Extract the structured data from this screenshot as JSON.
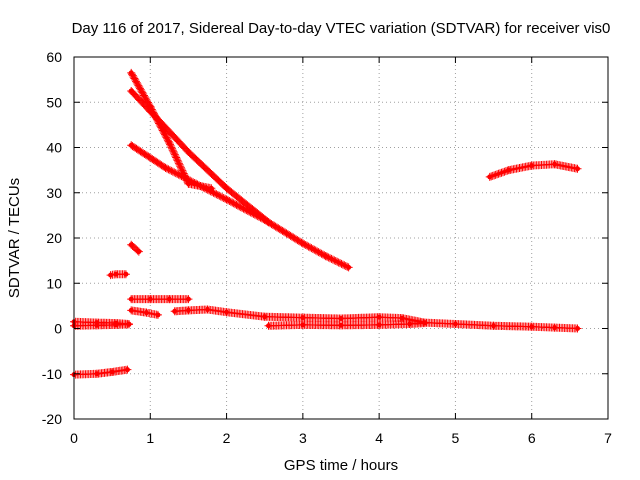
{
  "chart_data": {
    "type": "scatter",
    "title": "Day 116 of 2017, Sidereal Day-to-day VTEC variation (SDTVAR) for receiver vis0",
    "xlabel": "GPS time / hours",
    "ylabel": "SDTVAR / TECUs",
    "xlim": [
      0,
      7
    ],
    "ylim": [
      -20,
      60
    ],
    "xticks": [
      "0",
      "1",
      "2",
      "3",
      "4",
      "5",
      "6",
      "7"
    ],
    "yticks": [
      "-20",
      "-10",
      "0",
      "10",
      "20",
      "30",
      "40",
      "50",
      "60"
    ],
    "grid": true,
    "marker_color": "#ff0000",
    "series": [
      {
        "points": [
          [
            0.0,
            1.5
          ],
          [
            0.3,
            1.3
          ],
          [
            0.55,
            1.2
          ],
          [
            0.72,
            1.0
          ]
        ]
      },
      {
        "points": [
          [
            0.0,
            0.6
          ],
          [
            0.3,
            0.7
          ],
          [
            0.55,
            0.8
          ],
          [
            0.72,
            0.9
          ]
        ]
      },
      {
        "points": [
          [
            0.0,
            -10.2
          ],
          [
            0.3,
            -10.0
          ],
          [
            0.5,
            -9.6
          ],
          [
            0.7,
            -9.1
          ]
        ]
      },
      {
        "points": [
          [
            0.48,
            11.8
          ],
          [
            0.55,
            12.0
          ],
          [
            0.68,
            12.0
          ]
        ]
      },
      {
        "points": [
          [
            0.75,
            18.5
          ],
          [
            0.85,
            17.0
          ]
        ]
      },
      {
        "points": [
          [
            0.75,
            6.5
          ],
          [
            1.0,
            6.5
          ],
          [
            1.25,
            6.5
          ],
          [
            1.5,
            6.5
          ]
        ]
      },
      {
        "points": [
          [
            0.75,
            4.0
          ],
          [
            0.95,
            3.5
          ],
          [
            1.1,
            3.0
          ]
        ]
      },
      {
        "points": [
          [
            1.32,
            3.8
          ],
          [
            1.5,
            4.0
          ],
          [
            1.75,
            4.2
          ],
          [
            2.0,
            3.6
          ],
          [
            2.5,
            2.6
          ],
          [
            3.0,
            2.4
          ],
          [
            3.5,
            2.2
          ],
          [
            4.0,
            2.5
          ],
          [
            4.3,
            2.3
          ],
          [
            4.6,
            1.3
          ],
          [
            5.0,
            1.0
          ],
          [
            5.5,
            0.6
          ],
          [
            6.0,
            0.4
          ],
          [
            6.3,
            0.2
          ],
          [
            6.6,
            0.0
          ]
        ]
      },
      {
        "points": [
          [
            2.55,
            0.6
          ],
          [
            3.0,
            0.8
          ],
          [
            3.5,
            0.7
          ],
          [
            4.0,
            0.8
          ],
          [
            4.4,
            1.0
          ],
          [
            4.6,
            1.2
          ]
        ]
      },
      {
        "points": [
          [
            0.75,
            56.5
          ],
          [
            1.0,
            49.0
          ],
          [
            1.25,
            41.0
          ],
          [
            1.5,
            32.0
          ],
          [
            1.8,
            31.0
          ]
        ]
      },
      {
        "points": [
          [
            0.75,
            52.5
          ],
          [
            1.0,
            48.0
          ],
          [
            1.5,
            39.0
          ],
          [
            2.0,
            31.0
          ],
          [
            2.55,
            23.5
          ]
        ]
      },
      {
        "points": [
          [
            0.75,
            40.5
          ],
          [
            1.2,
            35.5
          ],
          [
            1.6,
            32.0
          ],
          [
            2.0,
            28.5
          ],
          [
            2.5,
            24.0
          ],
          [
            3.0,
            18.8
          ],
          [
            3.3,
            16.0
          ],
          [
            3.6,
            13.5
          ]
        ]
      },
      {
        "points": [
          [
            5.45,
            33.5
          ],
          [
            5.7,
            35.0
          ],
          [
            6.0,
            36.0
          ],
          [
            6.3,
            36.3
          ],
          [
            6.6,
            35.3
          ]
        ]
      }
    ]
  }
}
